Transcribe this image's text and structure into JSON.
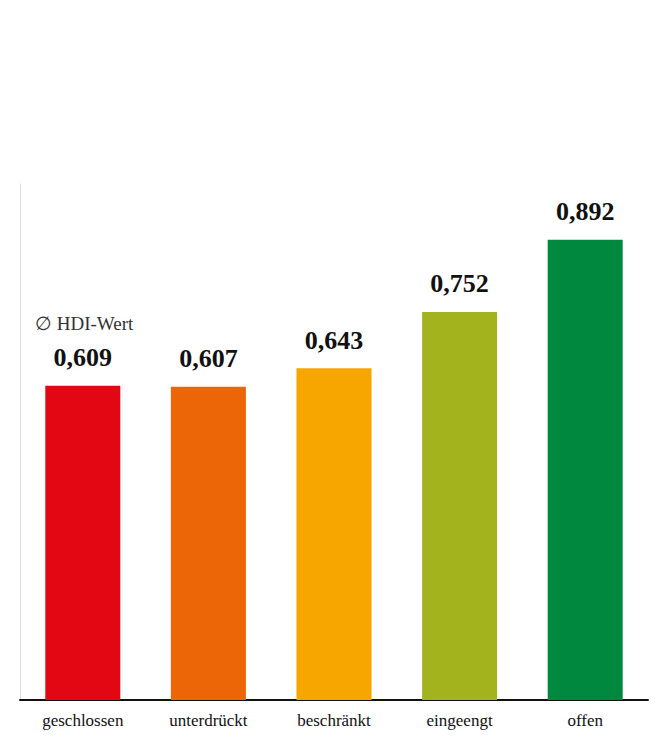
{
  "chart_data": {
    "type": "bar",
    "title": "∅ HDI-Wert",
    "categories": [
      "geschlossen",
      "unterdrückt",
      "beschränkt",
      "eingeengt",
      "offen"
    ],
    "values": [
      0.609,
      0.607,
      0.643,
      0.752,
      0.892
    ],
    "value_labels": [
      "0,609",
      "0,607",
      "0,643",
      "0,752",
      "0,892"
    ],
    "colors": [
      "#e30613",
      "#ec6608",
      "#f7a600",
      "#a2b31e",
      "#00893e"
    ],
    "ylim": [
      0,
      1
    ],
    "grid": false,
    "data_labels": true,
    "tick_labels": "x"
  }
}
